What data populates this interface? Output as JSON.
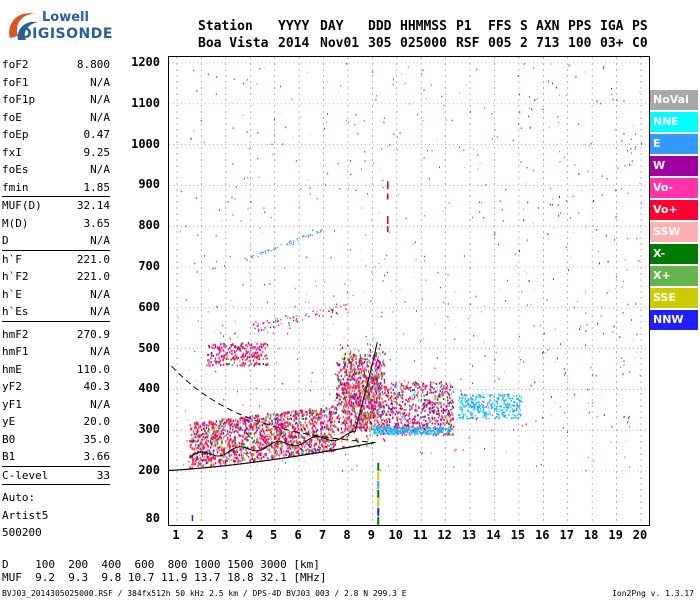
{
  "logo": {
    "line1": "Lowell",
    "line2": "DIGISONDE"
  },
  "header": {
    "labels": [
      "Station",
      "YYYY",
      "DAY",
      "DDD",
      "HHMMSS",
      "P1",
      "FFS",
      "S",
      "AXN",
      "PPS",
      "IGA",
      "PS"
    ],
    "values": [
      "Boa Vista",
      "2014",
      "Nov01",
      "305",
      "025000",
      "RSF",
      "005",
      "2",
      "713",
      "100",
      "03+",
      "C0"
    ]
  },
  "params": [
    {
      "k": "foF2",
      "v": "8.800"
    },
    {
      "k": "foF1",
      "v": "N/A"
    },
    {
      "k": "foF1p",
      "v": "N/A"
    },
    {
      "k": "foE",
      "v": "N/A"
    },
    {
      "k": "foEp",
      "v": "0.47"
    },
    {
      "k": "fxI",
      "v": "9.25"
    },
    {
      "k": "foEs",
      "v": "N/A"
    },
    {
      "k": "fmin",
      "v": "1.85"
    },
    {
      "k": "MUF(D)",
      "v": "32.14"
    },
    {
      "k": "M(D)",
      "v": "3.65"
    },
    {
      "k": "D",
      "v": "N/A"
    },
    {
      "k": "h`F",
      "v": "221.0"
    },
    {
      "k": "h`F2",
      "v": "221.0"
    },
    {
      "k": "h`E",
      "v": "N/A"
    },
    {
      "k": "h`Es",
      "v": "N/A"
    },
    {
      "k": "hmF2",
      "v": "270.9"
    },
    {
      "k": "hmF1",
      "v": "N/A"
    },
    {
      "k": "hmE",
      "v": "110.0"
    },
    {
      "k": "yF2",
      "v": "40.3"
    },
    {
      "k": "yF1",
      "v": "N/A"
    },
    {
      "k": "yE",
      "v": "20.0"
    },
    {
      "k": "B0",
      "v": "35.0"
    },
    {
      "k": "B1",
      "v": "3.66"
    },
    {
      "k": "C-level",
      "v": "33"
    }
  ],
  "auto": {
    "line1": "Auto:",
    "line2": "Artist5",
    "line3": "500200"
  },
  "axes": {
    "y_ticks": [
      "1200",
      "1100",
      "1000",
      "900",
      "800",
      "700",
      "600",
      "500",
      "400",
      "300",
      "200",
      "80"
    ],
    "x_ticks": [
      "1",
      "2",
      "3",
      "4",
      "5",
      "6",
      "7",
      "8",
      "9",
      "10",
      "11",
      "12",
      "13",
      "14",
      "15",
      "16",
      "17",
      "18",
      "19",
      "20"
    ]
  },
  "legend": [
    {
      "label": "NoVal",
      "color": "#a9a9a9"
    },
    {
      "label": "NNE",
      "color": "#00ffff"
    },
    {
      "label": "E",
      "color": "#3399ff"
    },
    {
      "label": "W",
      "color": "#a000a0"
    },
    {
      "label": "Vo-",
      "color": "#ff33aa"
    },
    {
      "label": "Vo+",
      "color": "#ff0033"
    },
    {
      "label": "SSW",
      "color": "#ffb0b0"
    },
    {
      "label": "X-",
      "color": "#007a00"
    },
    {
      "label": "X+",
      "color": "#66b34d"
    },
    {
      "label": "SSE",
      "color": "#cccc00"
    },
    {
      "label": "NNW",
      "color": "#2020ff"
    }
  ],
  "bottom": {
    "d_label": "D",
    "d_values": "100  200  400  600  800 1000 1500 3000 [km]",
    "muf_label": "MUF",
    "muf_values": "9.2  9.3  9.8 10.7 11.9 13.7 18.8 32.1 [MHz]"
  },
  "footer": "BVJ03_2014305025000.RSF / 384fx512h 50 kHz 2.5 km / DPS-4D BVJ03 003 / 2.8 N 299.3 E",
  "version": "Ion2Png v. 1.3.17"
}
